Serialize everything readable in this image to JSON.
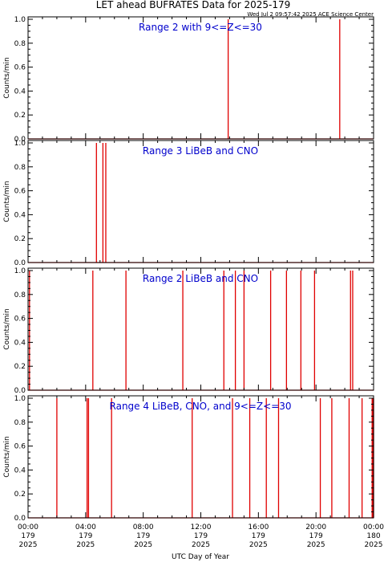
{
  "title": "LET ahead BUFRATES Data for 2025-179",
  "timestamp": "Wed Jul  2 09:57:42 2025 ACE Science Center",
  "xlabel": "UTC Day of Year",
  "ylabel": "Counts/min",
  "colors": {
    "axis": "#000000",
    "data": "#e00000",
    "label": "#0000cc"
  },
  "chart_data": [
    {
      "type": "line",
      "title": "Range 2 with 9<=Z<=30",
      "xlim": [
        0,
        24
      ],
      "ylim": [
        0,
        1.0
      ],
      "yticks": [
        "0.0",
        "0.2",
        "0.4",
        "0.6",
        "0.8",
        "1.0"
      ],
      "spikes_hours": [
        13.9,
        21.65
      ]
    },
    {
      "type": "line",
      "title": "Range 3 LiBeB and CNO",
      "xlim": [
        0,
        24
      ],
      "ylim": [
        0,
        1.0
      ],
      "yticks": [
        "0.0",
        "0.2",
        "0.4",
        "0.6",
        "0.8",
        "1.0"
      ],
      "spikes_hours": [
        4.75,
        5.2,
        5.4
      ]
    },
    {
      "type": "line",
      "title": "Range 2 LiBeB and CNO",
      "xlim": [
        0,
        24
      ],
      "ylim": [
        0,
        1.0
      ],
      "yticks": [
        "0.0",
        "0.2",
        "0.4",
        "0.6",
        "0.8",
        "1.0"
      ],
      "spikes_hours": [
        0.1,
        4.5,
        6.8,
        10.75,
        13.6,
        14.4,
        15.0,
        16.85,
        17.95,
        18.95,
        19.9,
        22.4,
        22.55
      ]
    },
    {
      "type": "line",
      "title": "Range 4 LiBeB, CNO, and 9<=Z<=30",
      "xlim": [
        0,
        24
      ],
      "ylim": [
        0,
        1.0
      ],
      "yticks": [
        "0.0",
        "0.2",
        "0.4",
        "0.6",
        "0.8",
        "1.0"
      ],
      "spikes_hours": [
        2.0,
        4.1,
        4.2,
        5.8,
        11.4,
        14.2,
        15.4,
        16.55,
        17.4,
        20.3,
        21.1,
        22.3,
        23.2,
        23.9,
        23.95,
        24.0
      ]
    }
  ],
  "xticks": [
    {
      "hour": 0,
      "time": "00:00",
      "doy": "179",
      "year": "2025"
    },
    {
      "hour": 4,
      "time": "04:00",
      "doy": "179",
      "year": "2025"
    },
    {
      "hour": 8,
      "time": "08:00",
      "doy": "179",
      "year": "2025"
    },
    {
      "hour": 12,
      "time": "12:00",
      "doy": "179",
      "year": "2025"
    },
    {
      "hour": 16,
      "time": "16:00",
      "doy": "179",
      "year": "2025"
    },
    {
      "hour": 20,
      "time": "20:00",
      "doy": "179",
      "year": "2025"
    },
    {
      "hour": 24,
      "time": "00:00",
      "doy": "180",
      "year": "2025"
    }
  ]
}
